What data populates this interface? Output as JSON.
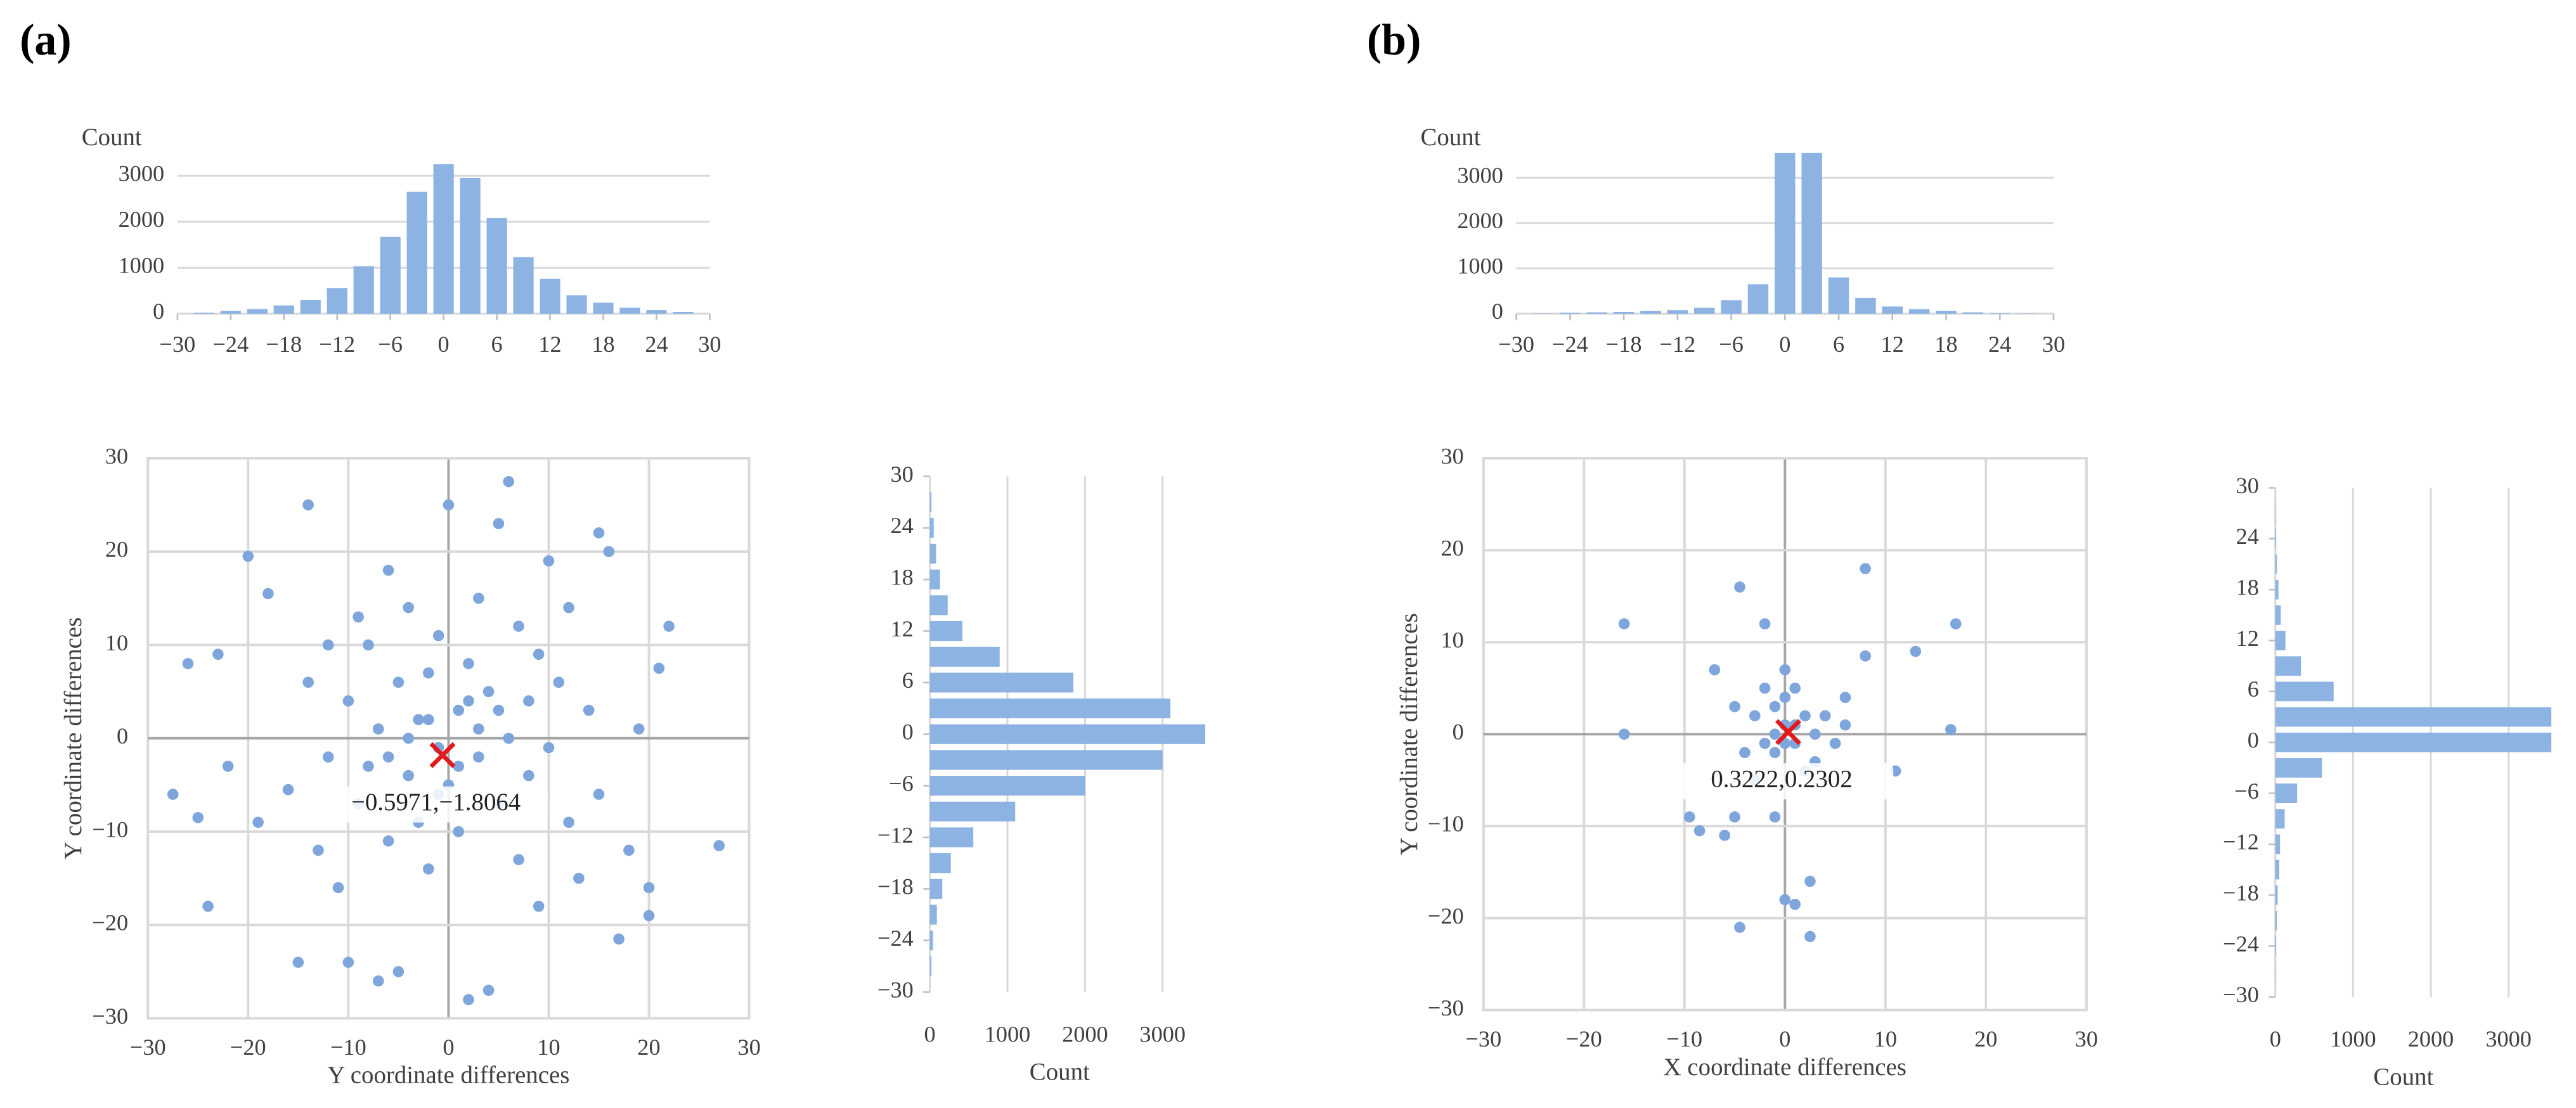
{
  "labels": [
    "(a)",
    "(b)"
  ],
  "chart_data": [
    {
      "type": "bar",
      "ylabel": "Count",
      "color": "#8db3e2",
      "x": [
        -27,
        -24,
        -21,
        -18,
        -15,
        -12,
        -9,
        -6,
        -3,
        0,
        3,
        6,
        9,
        12,
        15,
        18,
        21,
        24,
        27
      ],
      "values": [
        20,
        60,
        100,
        180,
        300,
        560,
        1030,
        1670,
        2650,
        3250,
        2950,
        2080,
        1230,
        760,
        400,
        240,
        130,
        80,
        40
      ],
      "xlim": [
        -30,
        30
      ],
      "ylim": [
        0,
        3500
      ],
      "xticks": [
        {
          "value": -30,
          "label": "−30"
        },
        {
          "value": -24,
          "label": "−24"
        },
        {
          "value": -18,
          "label": "−18"
        },
        {
          "value": -12,
          "label": "−12"
        },
        {
          "value": -6,
          "label": "−6"
        },
        0,
        6,
        12,
        18,
        24,
        30
      ],
      "yticks": [
        0,
        1000,
        2000,
        3000
      ],
      "grid": true
    },
    {
      "type": "scatter",
      "xlabel": "Y coordinate differences",
      "ylabel": "Y coordinate differences",
      "color": "#7ea6dc",
      "x": [
        -27.5,
        -26,
        -25,
        -24,
        -23,
        -22,
        -20,
        -19,
        -18,
        -16,
        -15,
        -14,
        -14,
        -13,
        -12,
        -12,
        -11,
        -10,
        -10,
        -9,
        -9,
        -8,
        -8,
        -7,
        -7,
        -6,
        -6,
        -5,
        -5,
        -4,
        -4,
        -3,
        -3,
        -2,
        -2,
        -1,
        -1,
        0,
        0,
        1,
        1,
        2,
        2,
        3,
        3,
        4,
        4,
        5,
        5,
        6,
        6,
        7,
        7,
        8,
        8,
        9,
        9,
        10,
        10,
        11,
        12,
        12,
        13,
        14,
        15,
        15,
        16,
        17,
        18,
        19,
        20,
        20,
        21,
        22,
        27,
        -2,
        1,
        -4,
        3,
        -6,
        5,
        -1,
        2
      ],
      "y": [
        -6,
        8,
        -8.5,
        -18,
        9,
        -3,
        19.5,
        -9,
        15.5,
        -5.5,
        -24,
        25,
        6,
        -12,
        10,
        -2,
        -16,
        -24,
        4,
        13,
        -7,
        10,
        -3,
        -26,
        1,
        18,
        -11,
        -25,
        6,
        -4,
        14,
        2,
        -9,
        7,
        -14,
        -1,
        11,
        25,
        -5,
        3,
        -10,
        -28,
        8,
        -2,
        15,
        -27,
        5,
        23,
        -7,
        27.5,
        0,
        12,
        -13,
        4,
        -4,
        9,
        -18,
        19,
        -1,
        6,
        -9,
        14,
        -15,
        3,
        22,
        -6,
        20,
        -21.5,
        -12,
        1,
        -16,
        -19,
        7.5,
        12,
        -11.5,
        2,
        -3,
        0,
        1,
        -2,
        3,
        -6,
        4
      ],
      "mean": {
        "x": -0.5971,
        "y": -1.8064,
        "label": "−0.5971,−1.8064",
        "color": "#e31a1c"
      },
      "xlim": [
        -30,
        30
      ],
      "ylim": [
        -30,
        30
      ],
      "xticks": [
        {
          "value": -30,
          "label": "−30"
        },
        {
          "value": -20,
          "label": "−20"
        },
        {
          "value": -10,
          "label": "−10"
        },
        0,
        10,
        20,
        30
      ],
      "yticks": [
        {
          "value": -30,
          "label": "−30"
        },
        {
          "value": -20,
          "label": "−20"
        },
        {
          "value": -10,
          "label": "−10"
        },
        0,
        10,
        20,
        30
      ],
      "grid": true
    },
    {
      "type": "barh",
      "xlabel": "Count",
      "color": "#8db3e2",
      "y": [
        -27,
        -24,
        -21,
        -18,
        -15,
        -12,
        -9,
        -6,
        -3,
        0,
        3,
        6,
        9,
        12,
        15,
        18,
        21,
        24,
        27
      ],
      "values": [
        20,
        40,
        90,
        160,
        270,
        560,
        1100,
        2000,
        3000,
        3550,
        3100,
        1850,
        900,
        420,
        230,
        130,
        80,
        50,
        20
      ],
      "xlim": [
        0,
        3600
      ],
      "ylim": [
        -30,
        30
      ],
      "xticks": [
        0,
        1000,
        2000,
        3000
      ],
      "yticks": [
        {
          "value": -30,
          "label": "−30"
        },
        {
          "value": -24,
          "label": "−24"
        },
        {
          "value": -18,
          "label": "−18"
        },
        {
          "value": -12,
          "label": "−12"
        },
        {
          "value": -6,
          "label": "−6"
        },
        0,
        6,
        12,
        18,
        24,
        30
      ],
      "grid": true
    },
    {
      "type": "bar",
      "ylabel": "Count",
      "color": "#8db3e2",
      "x": [
        -27,
        -24,
        -21,
        -18,
        -15,
        -12,
        -9,
        -6,
        -3,
        0,
        3,
        6,
        9,
        12,
        15,
        18,
        21,
        24,
        27
      ],
      "values": [
        5,
        20,
        30,
        40,
        60,
        80,
        130,
        300,
        650,
        3550,
        3550,
        800,
        350,
        160,
        100,
        60,
        30,
        10,
        5
      ],
      "xlim": [
        -30,
        30
      ],
      "ylim": [
        0,
        3550
      ],
      "xticks": [
        {
          "value": -30,
          "label": "−30"
        },
        {
          "value": -24,
          "label": "−24"
        },
        {
          "value": -18,
          "label": "−18"
        },
        {
          "value": -12,
          "label": "−12"
        },
        {
          "value": -6,
          "label": "−6"
        },
        0,
        6,
        12,
        18,
        24,
        30
      ],
      "yticks": [
        0,
        1000,
        2000,
        3000
      ],
      "grid": true
    },
    {
      "type": "scatter",
      "xlabel": "X coordinate differences",
      "ylabel": "Y coordinate differences",
      "color": "#7ea6dc",
      "x": [
        -16,
        -16,
        -9.5,
        -8.5,
        -7,
        -6,
        -5,
        -4.5,
        -4.5,
        -2,
        -1,
        0,
        1,
        2.5,
        2.5,
        8,
        8,
        11,
        13,
        16.5,
        17,
        6,
        -3,
        -2,
        -1,
        0,
        1,
        2,
        3,
        -1,
        0,
        1,
        -2,
        3,
        4,
        -4,
        5,
        -3,
        2,
        0,
        1,
        -1,
        6,
        -5,
        0
      ],
      "y": [
        12,
        0,
        -9,
        -10.5,
        7,
        -11,
        -9,
        16,
        -21,
        12,
        -9,
        -18,
        -18.5,
        -16,
        -22,
        18,
        8.5,
        -4,
        9,
        0.5,
        12,
        4,
        2,
        -1,
        3,
        1,
        -1,
        2,
        0,
        -2,
        4,
        5,
        5,
        -3,
        2,
        -2,
        -1,
        -5,
        -4,
        -1,
        1,
        0,
        1,
        3,
        7
      ],
      "mean": {
        "x": 0.3222,
        "y": 0.2302,
        "label": "0.3222,0.2302",
        "color": "#e31a1c"
      },
      "xlim": [
        -30,
        30
      ],
      "ylim": [
        -30,
        30
      ],
      "xticks": [
        {
          "value": -30,
          "label": "−30"
        },
        {
          "value": -20,
          "label": "−20"
        },
        {
          "value": -10,
          "label": "−10"
        },
        0,
        10,
        20,
        30
      ],
      "yticks": [
        {
          "value": -30,
          "label": "−30"
        },
        {
          "value": -20,
          "label": "−20"
        },
        {
          "value": -10,
          "label": "−10"
        },
        0,
        10,
        20,
        30
      ],
      "grid": true
    },
    {
      "type": "barh",
      "xlabel": "Count",
      "color": "#8db3e2",
      "y": [
        -27,
        -24,
        -21,
        -18,
        -15,
        -12,
        -9,
        -6,
        -3,
        0,
        3,
        6,
        9,
        12,
        15,
        18,
        21,
        24,
        27
      ],
      "values": [
        5,
        10,
        20,
        30,
        50,
        60,
        120,
        280,
        600,
        3550,
        3550,
        750,
        330,
        130,
        70,
        40,
        20,
        10,
        5
      ],
      "xlim": [
        0,
        3550
      ],
      "ylim": [
        -30,
        30
      ],
      "xticks": [
        0,
        1000,
        2000,
        3000
      ],
      "yticks": [
        {
          "value": -30,
          "label": "−30"
        },
        {
          "value": -24,
          "label": "−24"
        },
        {
          "value": -18,
          "label": "−18"
        },
        {
          "value": -12,
          "label": "−12"
        },
        {
          "value": -6,
          "label": "−6"
        },
        0,
        6,
        12,
        18,
        24,
        30
      ],
      "grid": true
    }
  ]
}
